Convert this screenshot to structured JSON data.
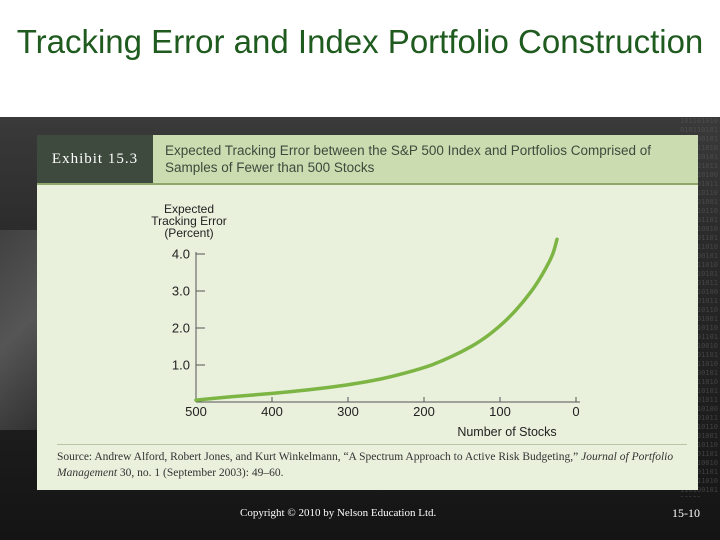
{
  "slide": {
    "title": "Tracking Error and Index Portfolio Construction",
    "copyright": "Copyright © 2010 by Nelson Education Ltd.",
    "page_number": "15-10"
  },
  "exhibit": {
    "label": "Exhibit 15.3",
    "caption": "Expected Tracking Error between the S&P 500 Index and Portfolios Comprised of Samples of Fewer than 500 Stocks",
    "source_prefix": "Source: Andrew Alford, Robert Jones, and Kurt Winkelmann, “A Spectrum Approach to Active Risk Budgeting,” ",
    "source_journal": "Journal of Portfolio Management",
    "source_suffix": " 30, no. 1 (September 2003): 49–60."
  },
  "colors": {
    "title": "#1f5a1f",
    "curve": "#7db544",
    "exhibit_bg": "#e9f0dc",
    "header_bg": "#cbdcb0",
    "label_bg": "#3d4a3d"
  },
  "chart_data": {
    "type": "line",
    "ylabel_lines": [
      "Expected",
      "Tracking Error",
      "(Percent)"
    ],
    "xlabel": "Number of Stocks",
    "x_ticks": [
      500,
      400,
      300,
      200,
      100,
      0
    ],
    "x_tick_labels": [
      "500",
      "400",
      "300",
      "200",
      "100",
      "0"
    ],
    "y_ticks": [
      1.0,
      2.0,
      3.0,
      4.0
    ],
    "y_tick_labels": [
      "1.0",
      "2.0",
      "3.0",
      "4.0"
    ],
    "xlim": [
      500,
      0
    ],
    "ylim": [
      0,
      4.0
    ],
    "x_reversed": true,
    "grid": false,
    "series": [
      {
        "x": [
          500,
          450,
          400,
          350,
          300,
          250,
          200,
          175,
          150,
          125,
          100,
          80,
          60,
          50,
          40,
          30,
          25
        ],
        "y": [
          0.05,
          0.15,
          0.23,
          0.33,
          0.46,
          0.64,
          0.92,
          1.12,
          1.36,
          1.65,
          2.05,
          2.45,
          2.95,
          3.25,
          3.6,
          4.0,
          4.4
        ]
      }
    ]
  },
  "decor": {
    "binary_text": "10110101001011010111010010110101101001011010110100101101011010010110101101001011010110100101101011010010110101101001011010110100101101011010010110101101001011010110100101101011010010110101101001011010110100101101011010010110101101001011010110100101101011010010110101101001011010110100101101011010010110101101001011010110100101101011010010110101101001011010110100101101011010010110101"
  }
}
